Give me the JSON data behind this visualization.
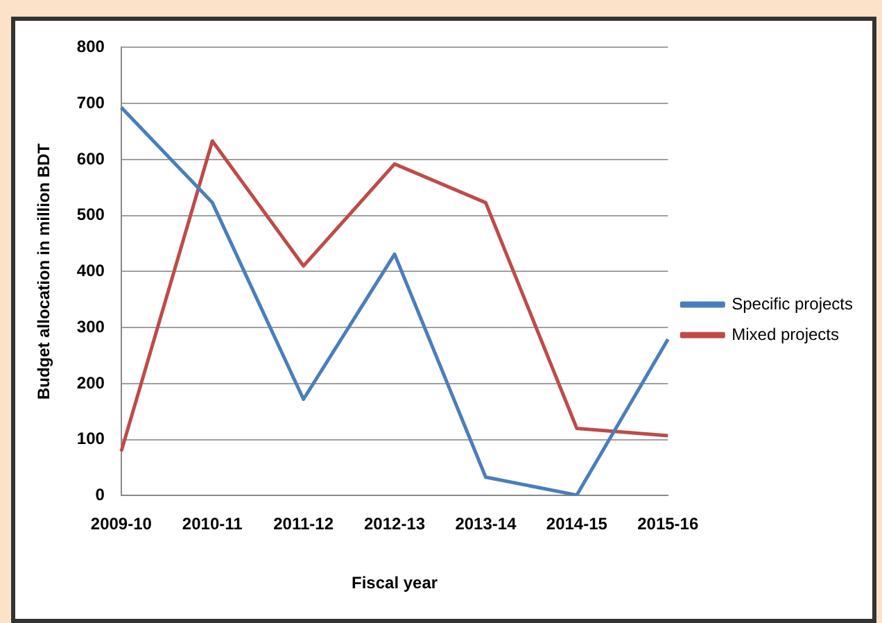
{
  "chart_data": {
    "type": "line",
    "xlabel": "Fiscal year",
    "ylabel": "Budget allocation in million BDT",
    "categories": [
      "2009-10",
      "2010-11",
      "2011-12",
      "2012-13",
      "2013-14",
      "2014-15",
      "2015-16"
    ],
    "series": [
      {
        "name": "Specific projects",
        "color": "#4a7ebb",
        "values": [
          693,
          523,
          172,
          431,
          33,
          1,
          279
        ]
      },
      {
        "name": "Mixed projects",
        "color": "#be4b48",
        "values": [
          79,
          633,
          410,
          592,
          523,
          120,
          107
        ]
      }
    ],
    "ylim": [
      0,
      800
    ],
    "yticks": [
      0,
      100,
      200,
      300,
      400,
      500,
      600,
      700,
      800
    ],
    "grid": "y",
    "legend": "right",
    "marker": "none",
    "line_style": "solid"
  }
}
